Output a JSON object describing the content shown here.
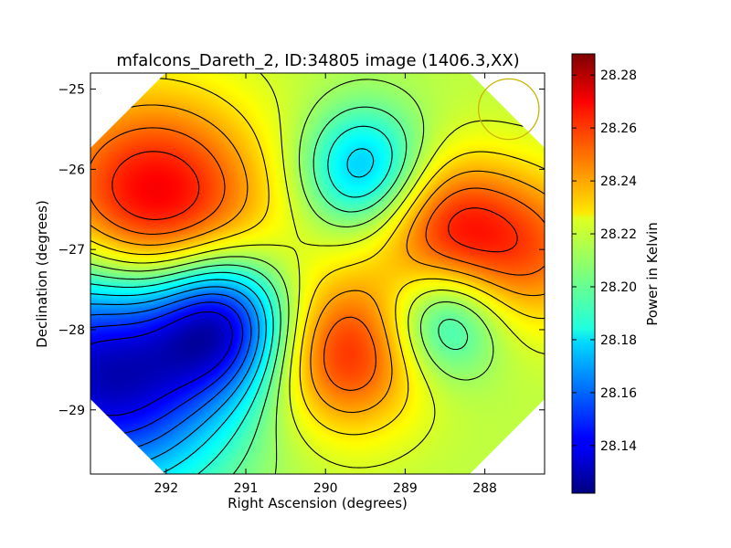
{
  "chart_data": {
    "type": "heatmap",
    "title": "mfalcons_Dareth_2, ID:34805 image (1406.3,XX)",
    "xlabel": "Right Ascension (degrees)",
    "ylabel": "Declination (degrees)",
    "xlim": [
      292.95,
      287.25
    ],
    "ylim": [
      -29.8,
      -24.8
    ],
    "x_ticks": [
      292,
      291,
      290,
      289,
      288
    ],
    "y_ticks": [
      -25,
      -26,
      -27,
      -28,
      -29
    ],
    "x_tick_labels": [
      "292",
      "291",
      "290",
      "289",
      "288"
    ],
    "y_tick_labels": [
      "−25",
      "−26",
      "−27",
      "−28",
      "−29"
    ],
    "colormap": "jet",
    "colorbar": {
      "label": "Power in Kelvin",
      "range": [
        28.122,
        28.288
      ],
      "ticks": [
        28.14,
        28.16,
        28.18,
        28.2,
        28.22,
        28.24,
        28.26,
        28.28
      ],
      "tick_labels": [
        "28.14",
        "28.16",
        "28.18",
        "28.20",
        "28.22",
        "28.24",
        "28.26",
        "28.28"
      ]
    },
    "baseline_value": 28.215,
    "features": [
      {
        "kind": "max",
        "ra": 292.2,
        "dec": -26.6,
        "value": 28.285,
        "radius_deg": 1.0
      },
      {
        "kind": "max",
        "ra": 289.75,
        "dec": -28.3,
        "value": 28.262,
        "radius_deg": 0.7
      },
      {
        "kind": "max",
        "ra": 288.5,
        "dec": -26.7,
        "value": 28.255,
        "radius_deg": 0.65
      },
      {
        "kind": "max",
        "ra": 287.4,
        "dec": -27.0,
        "value": 28.248,
        "radius_deg": 0.7
      },
      {
        "kind": "min",
        "ra": 292.7,
        "dec": -28.4,
        "value": 28.122,
        "radius_deg": 1.1
      },
      {
        "kind": "min",
        "ra": 291.3,
        "dec": -27.9,
        "value": 28.15,
        "radius_deg": 0.6
      },
      {
        "kind": "min",
        "ra": 289.5,
        "dec": -26.0,
        "value": 28.17,
        "radius_deg": 0.55
      },
      {
        "kind": "min",
        "ra": 288.5,
        "dec": -27.9,
        "value": 28.18,
        "radius_deg": 0.5
      }
    ],
    "contour_levels": [
      28.14,
      28.15,
      28.16,
      28.17,
      28.18,
      28.19,
      28.2,
      28.21,
      28.22,
      28.23,
      28.24,
      28.25,
      28.26,
      28.27,
      28.28
    ],
    "beam": {
      "ra": 287.7,
      "dec": -25.25,
      "radius_deg": 0.38,
      "color": "#c8b400"
    },
    "grid": false,
    "footprint": "octagon"
  }
}
